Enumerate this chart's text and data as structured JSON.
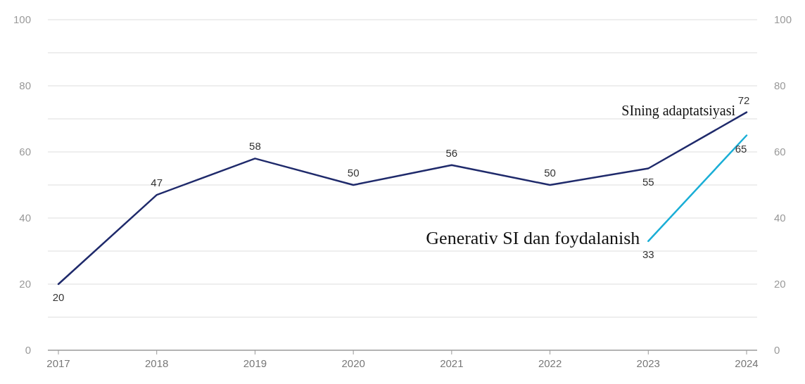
{
  "chart_data": {
    "type": "line",
    "categories": [
      "2017",
      "2018",
      "2019",
      "2020",
      "2021",
      "2022",
      "2023",
      "2024"
    ],
    "series": [
      {
        "name": "SIning adaptatsiyasi",
        "color": "#1f2a6b",
        "values": [
          20,
          47,
          58,
          50,
          56,
          50,
          55,
          72
        ]
      },
      {
        "name": "Generativ SI dan foydalanish",
        "color": "#1aaed6",
        "values": [
          null,
          null,
          null,
          null,
          null,
          null,
          33,
          65
        ]
      }
    ],
    "ylim": [
      0,
      100
    ],
    "yticks": [
      0,
      {
        "value": 10,
        "label": null
      },
      20,
      {
        "value": 30,
        "label": null
      },
      40,
      {
        "value": 50,
        "label": null
      },
      60,
      {
        "value": 70,
        "label": null
      },
      80,
      {
        "value": 90,
        "label": null
      },
      100
    ],
    "y2lim": [
      0,
      100
    ],
    "y2ticks": [
      0,
      20,
      40,
      60,
      80,
      100
    ],
    "grid": "y",
    "data_labels": true,
    "marker": "none",
    "line_style": "solid"
  }
}
